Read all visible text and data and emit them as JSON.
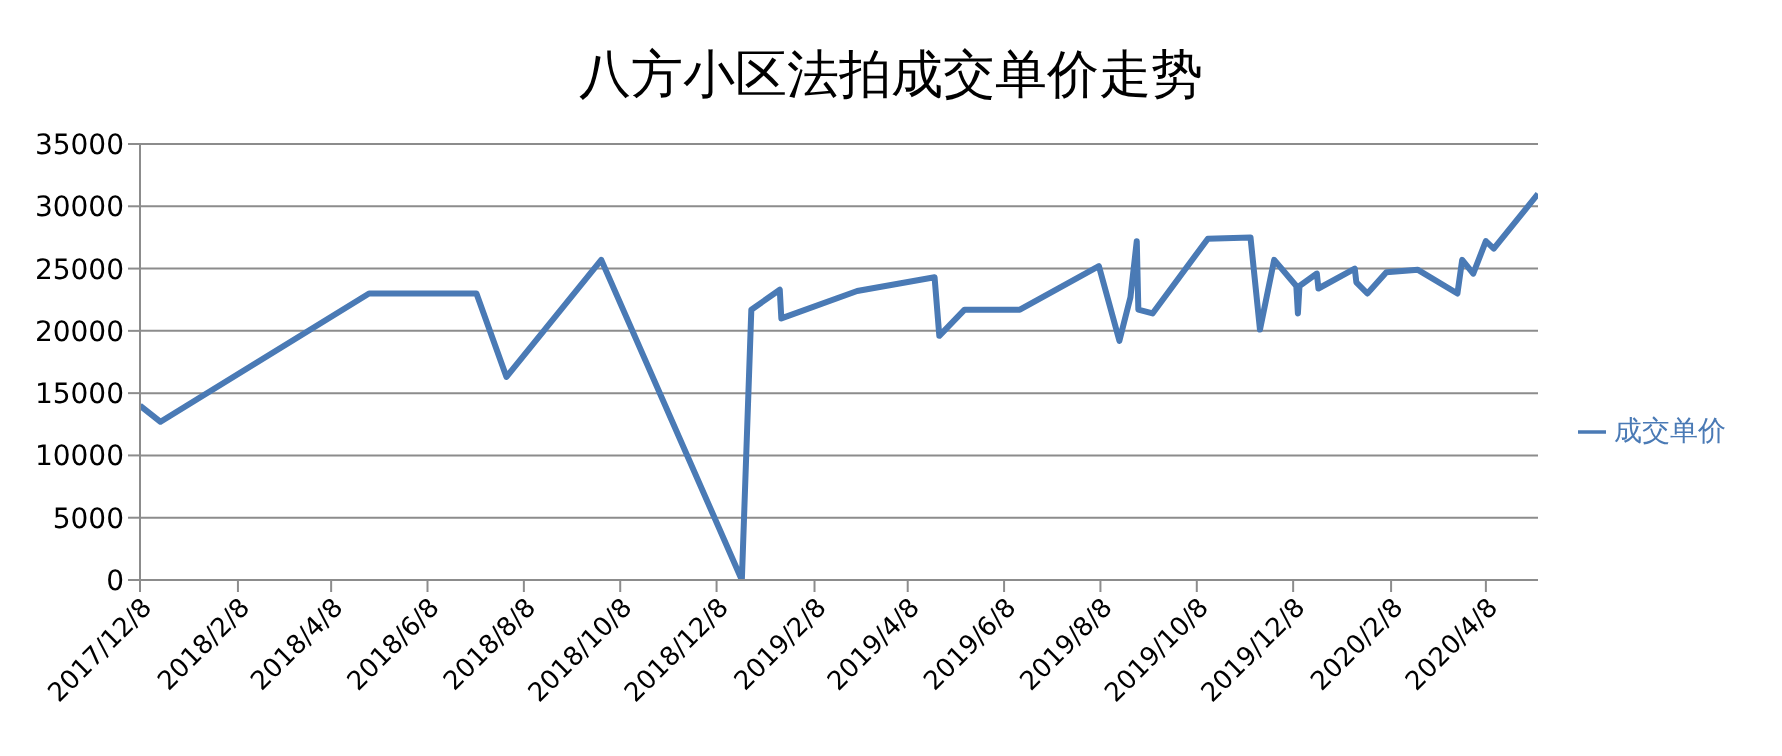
{
  "chart_data": {
    "type": "line",
    "title": "八方小区法拍成交单价走势",
    "x": [
      "2017-12-08",
      "2017-12-21",
      "2018-05-02",
      "2018-07-09",
      "2018-07-28",
      "2018-09-26",
      "2018-12-24",
      "2018-12-30",
      "2019-01-17",
      "2019-01-18",
      "2019-03-07",
      "2019-04-25",
      "2019-04-28",
      "2019-05-14",
      "2019-06-18",
      "2019-08-07",
      "2019-08-20",
      "2019-08-27",
      "2019-08-31",
      "2019-09-01",
      "2019-09-10",
      "2019-10-15",
      "2019-11-11",
      "2019-11-17",
      "2019-11-26",
      "2019-12-10",
      "2019-12-11",
      "2019-12-12",
      "2019-12-23",
      "2019-12-24",
      "2020-01-16",
      "2020-01-17",
      "2020-01-24",
      "2020-02-05",
      "2020-02-25",
      "2020-03-21",
      "2020-03-24",
      "2020-03-31",
      "2020-04-08",
      "2020-04-13",
      "2020-05-11"
    ],
    "series": [
      {
        "name": "成交单价",
        "color": "#4a7ab5",
        "values": [
          14000,
          12700,
          23000,
          23000,
          16300,
          25700,
          0,
          21700,
          23300,
          21000,
          23200,
          24300,
          19600,
          21700,
          21700,
          25200,
          19200,
          22700,
          27200,
          21700,
          21400,
          27400,
          27500,
          20100,
          25700,
          23600,
          21400,
          23600,
          24600,
          23400,
          25000,
          23900,
          23000,
          24700,
          24900,
          23000,
          25700,
          24600,
          27200,
          26600,
          31000
        ]
      }
    ],
    "xlim": [
      "2017-12-08",
      "2020-05-11"
    ],
    "xticks": [
      {
        "value": "2017-12-08",
        "label": "2017/12/8"
      },
      {
        "value": "2018-02-08",
        "label": "2018/2/8"
      },
      {
        "value": "2018-04-08",
        "label": "2018/4/8"
      },
      {
        "value": "2018-06-08",
        "label": "2018/6/8"
      },
      {
        "value": "2018-08-08",
        "label": "2018/8/8"
      },
      {
        "value": "2018-10-08",
        "label": "2018/10/8"
      },
      {
        "value": "2018-12-08",
        "label": "2018/12/8"
      },
      {
        "value": "2019-02-08",
        "label": "2019/2/8"
      },
      {
        "value": "2019-04-08",
        "label": "2019/4/8"
      },
      {
        "value": "2019-06-08",
        "label": "2019/6/8"
      },
      {
        "value": "2019-08-08",
        "label": "2019/8/8"
      },
      {
        "value": "2019-10-08",
        "label": "2019/10/8"
      },
      {
        "value": "2019-12-08",
        "label": "2019/12/8"
      },
      {
        "value": "2020-02-08",
        "label": "2020/2/8"
      },
      {
        "value": "2020-04-08",
        "label": "2020/4/8"
      }
    ],
    "ylim": [
      0,
      35000
    ],
    "yticks": [
      0,
      5000,
      10000,
      15000,
      20000,
      25000,
      30000,
      35000
    ],
    "grid": "y",
    "legend": "right",
    "marker": "none",
    "line_style": "solid"
  }
}
